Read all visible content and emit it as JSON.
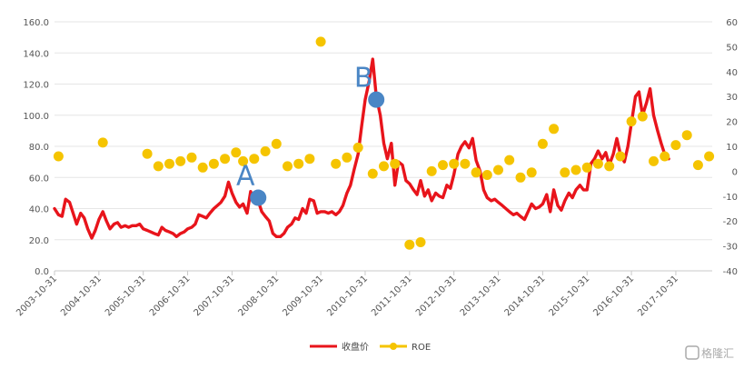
{
  "chart_data": {
    "type": "line",
    "title": "",
    "xlabel": "",
    "ylabel_left": "",
    "ylabel_right": "",
    "left_axis": {
      "min": 0,
      "max": 160,
      "step": 20,
      "ticks": [
        "0.0",
        "20.0",
        "40.0",
        "60.0",
        "80.0",
        "100.0",
        "120.0",
        "140.0",
        "160.0"
      ]
    },
    "right_axis": {
      "min": -40,
      "max": 60,
      "step": 10,
      "ticks": [
        "-40",
        "-30",
        "-20",
        "-10",
        "0",
        "10",
        "20",
        "30",
        "40",
        "50",
        "60"
      ]
    },
    "x_min": 2003.83,
    "x_max": 2018.65,
    "x_ticks": [
      {
        "t": 2003.83,
        "label": "2003-10-31"
      },
      {
        "t": 2004.83,
        "label": "2004-10-31"
      },
      {
        "t": 2005.83,
        "label": "2005-10-31"
      },
      {
        "t": 2006.83,
        "label": "2006-10-31"
      },
      {
        "t": 2007.83,
        "label": "2007-10-31"
      },
      {
        "t": 2008.83,
        "label": "2008-10-31"
      },
      {
        "t": 2009.83,
        "label": "2009-10-31"
      },
      {
        "t": 2010.83,
        "label": "2010-10-31"
      },
      {
        "t": 2011.83,
        "label": "2011-10-31"
      },
      {
        "t": 2012.83,
        "label": "2012-10-31"
      },
      {
        "t": 2013.83,
        "label": "2013-10-31"
      },
      {
        "t": 2014.83,
        "label": "2014-10-31"
      },
      {
        "t": 2015.83,
        "label": "2015-10-31"
      },
      {
        "t": 2016.83,
        "label": "2016-10-31"
      },
      {
        "t": 2017.83,
        "label": "2017-10-31"
      }
    ],
    "series": [
      {
        "name": "收盘价",
        "axis": "left",
        "color": "#e8141b",
        "type": "line",
        "points": [
          [
            2003.83,
            40
          ],
          [
            2003.92,
            36
          ],
          [
            2004.0,
            35
          ],
          [
            2004.08,
            46
          ],
          [
            2004.17,
            44
          ],
          [
            2004.25,
            37
          ],
          [
            2004.33,
            30
          ],
          [
            2004.42,
            37
          ],
          [
            2004.5,
            34
          ],
          [
            2004.58,
            27
          ],
          [
            2004.67,
            21
          ],
          [
            2004.75,
            26
          ],
          [
            2004.83,
            33
          ],
          [
            2004.92,
            38
          ],
          [
            2005.0,
            32
          ],
          [
            2005.08,
            27
          ],
          [
            2005.17,
            30
          ],
          [
            2005.25,
            31
          ],
          [
            2005.33,
            28
          ],
          [
            2005.42,
            29
          ],
          [
            2005.5,
            28
          ],
          [
            2005.58,
            29
          ],
          [
            2005.67,
            29
          ],
          [
            2005.75,
            30
          ],
          [
            2005.83,
            27
          ],
          [
            2005.92,
            26
          ],
          [
            2006.0,
            25
          ],
          [
            2006.08,
            24
          ],
          [
            2006.17,
            23
          ],
          [
            2006.25,
            28
          ],
          [
            2006.33,
            26
          ],
          [
            2006.42,
            25
          ],
          [
            2006.5,
            24
          ],
          [
            2006.58,
            22
          ],
          [
            2006.67,
            24
          ],
          [
            2006.75,
            25
          ],
          [
            2006.83,
            27
          ],
          [
            2006.92,
            28
          ],
          [
            2007.0,
            30
          ],
          [
            2007.08,
            36
          ],
          [
            2007.17,
            35
          ],
          [
            2007.25,
            34
          ],
          [
            2007.33,
            37
          ],
          [
            2007.42,
            40
          ],
          [
            2007.5,
            42
          ],
          [
            2007.58,
            44
          ],
          [
            2007.67,
            48
          ],
          [
            2007.75,
            57
          ],
          [
            2007.83,
            50
          ],
          [
            2007.92,
            44
          ],
          [
            2008.0,
            41
          ],
          [
            2008.08,
            43
          ],
          [
            2008.17,
            37
          ],
          [
            2008.25,
            51
          ],
          [
            2008.33,
            44
          ],
          [
            2008.42,
            45
          ],
          [
            2008.5,
            38
          ],
          [
            2008.58,
            35
          ],
          [
            2008.67,
            32
          ],
          [
            2008.75,
            24
          ],
          [
            2008.83,
            22
          ],
          [
            2008.92,
            22
          ],
          [
            2009.0,
            24
          ],
          [
            2009.08,
            28
          ],
          [
            2009.17,
            30
          ],
          [
            2009.25,
            34
          ],
          [
            2009.33,
            33
          ],
          [
            2009.42,
            40
          ],
          [
            2009.5,
            37
          ],
          [
            2009.58,
            46
          ],
          [
            2009.67,
            45
          ],
          [
            2009.75,
            37
          ],
          [
            2009.83,
            38
          ],
          [
            2009.92,
            38
          ],
          [
            2010.0,
            37
          ],
          [
            2010.08,
            38
          ],
          [
            2010.17,
            36
          ],
          [
            2010.25,
            38
          ],
          [
            2010.33,
            42
          ],
          [
            2010.42,
            50
          ],
          [
            2010.5,
            55
          ],
          [
            2010.58,
            65
          ],
          [
            2010.67,
            75
          ],
          [
            2010.75,
            93
          ],
          [
            2010.83,
            110
          ],
          [
            2010.92,
            122
          ],
          [
            2011.0,
            136
          ],
          [
            2011.08,
            112
          ],
          [
            2011.17,
            100
          ],
          [
            2011.25,
            82
          ],
          [
            2011.33,
            72
          ],
          [
            2011.42,
            82
          ],
          [
            2011.5,
            55
          ],
          [
            2011.58,
            70
          ],
          [
            2011.67,
            68
          ],
          [
            2011.75,
            58
          ],
          [
            2011.83,
            56
          ],
          [
            2011.92,
            52
          ],
          [
            2012.0,
            49
          ],
          [
            2012.08,
            58
          ],
          [
            2012.17,
            48
          ],
          [
            2012.25,
            52
          ],
          [
            2012.33,
            45
          ],
          [
            2012.42,
            50
          ],
          [
            2012.5,
            48
          ],
          [
            2012.58,
            47
          ],
          [
            2012.67,
            55
          ],
          [
            2012.75,
            53
          ],
          [
            2012.83,
            62
          ],
          [
            2012.92,
            75
          ],
          [
            2013.0,
            80
          ],
          [
            2013.08,
            83
          ],
          [
            2013.17,
            79
          ],
          [
            2013.25,
            85
          ],
          [
            2013.33,
            71
          ],
          [
            2013.42,
            64
          ],
          [
            2013.5,
            52
          ],
          [
            2013.58,
            47
          ],
          [
            2013.67,
            45
          ],
          [
            2013.75,
            46
          ],
          [
            2013.83,
            44
          ],
          [
            2013.92,
            42
          ],
          [
            2014.0,
            40
          ],
          [
            2014.08,
            38
          ],
          [
            2014.17,
            36
          ],
          [
            2014.25,
            37
          ],
          [
            2014.33,
            35
          ],
          [
            2014.42,
            33
          ],
          [
            2014.5,
            38
          ],
          [
            2014.58,
            43
          ],
          [
            2014.67,
            40
          ],
          [
            2014.75,
            41
          ],
          [
            2014.83,
            43
          ],
          [
            2014.92,
            49
          ],
          [
            2015.0,
            38
          ],
          [
            2015.08,
            52
          ],
          [
            2015.17,
            42
          ],
          [
            2015.25,
            39
          ],
          [
            2015.33,
            45
          ],
          [
            2015.42,
            50
          ],
          [
            2015.5,
            47
          ],
          [
            2015.58,
            52
          ],
          [
            2015.67,
            55
          ],
          [
            2015.75,
            52
          ],
          [
            2015.83,
            52
          ],
          [
            2015.92,
            69
          ],
          [
            2016.0,
            72
          ],
          [
            2016.08,
            77
          ],
          [
            2016.17,
            72
          ],
          [
            2016.25,
            76
          ],
          [
            2016.33,
            68
          ],
          [
            2016.42,
            75
          ],
          [
            2016.5,
            85
          ],
          [
            2016.58,
            75
          ],
          [
            2016.67,
            70
          ],
          [
            2016.75,
            80
          ],
          [
            2016.83,
            95
          ],
          [
            2016.92,
            112
          ],
          [
            2017.0,
            115
          ],
          [
            2017.08,
            100
          ],
          [
            2017.17,
            108
          ],
          [
            2017.25,
            117
          ],
          [
            2017.33,
            100
          ],
          [
            2017.42,
            90
          ],
          [
            2017.5,
            82
          ],
          [
            2017.58,
            75
          ],
          [
            2017.67,
            72
          ]
        ]
      },
      {
        "name": "ROE",
        "axis": "right",
        "color": "#f5c400",
        "type": "scatter",
        "points": [
          [
            2003.92,
            6
          ],
          [
            2004.92,
            11.5
          ],
          [
            2005.92,
            7
          ],
          [
            2006.17,
            2
          ],
          [
            2006.42,
            3
          ],
          [
            2006.67,
            4
          ],
          [
            2006.92,
            5.5
          ],
          [
            2007.17,
            1.5
          ],
          [
            2007.42,
            3
          ],
          [
            2007.67,
            5
          ],
          [
            2007.92,
            7.5
          ],
          [
            2008.08,
            4
          ],
          [
            2008.33,
            5
          ],
          [
            2008.58,
            8
          ],
          [
            2008.83,
            11
          ],
          [
            2009.08,
            2
          ],
          [
            2009.33,
            3
          ],
          [
            2009.58,
            5
          ],
          [
            2009.83,
            52
          ],
          [
            2010.17,
            3
          ],
          [
            2010.42,
            5.5
          ],
          [
            2010.67,
            9.5
          ],
          [
            2011.0,
            -1
          ],
          [
            2011.25,
            2
          ],
          [
            2011.5,
            3
          ],
          [
            2011.83,
            -29.5
          ],
          [
            2012.08,
            -28.5
          ],
          [
            2012.33,
            0
          ],
          [
            2012.58,
            2.5
          ],
          [
            2012.83,
            3
          ],
          [
            2013.08,
            3
          ],
          [
            2013.33,
            -0.5
          ],
          [
            2013.58,
            -1.5
          ],
          [
            2013.83,
            0.5
          ],
          [
            2014.08,
            4.5
          ],
          [
            2014.33,
            -2.5
          ],
          [
            2014.58,
            -0.5
          ],
          [
            2014.83,
            11
          ],
          [
            2015.08,
            17
          ],
          [
            2015.33,
            -0.5
          ],
          [
            2015.58,
            0.5
          ],
          [
            2015.83,
            1.5
          ],
          [
            2016.08,
            3
          ],
          [
            2016.33,
            2
          ],
          [
            2016.58,
            6
          ],
          [
            2016.83,
            20
          ],
          [
            2017.08,
            22
          ],
          [
            2017.33,
            4
          ],
          [
            2017.58,
            6
          ],
          [
            2017.83,
            10.5
          ],
          [
            2018.08,
            14.5
          ],
          [
            2018.33,
            2.5
          ],
          [
            2018.58,
            6
          ]
        ]
      }
    ],
    "annotations": [
      {
        "label": "A",
        "t": 2008.42,
        "value": 47,
        "color": "#4a86c5"
      },
      {
        "label": "B",
        "t": 2011.08,
        "value": 110,
        "color": "#4a86c5"
      }
    ],
    "legend": {
      "position": "bottom",
      "entries": [
        {
          "label": "收盘价",
          "color": "#e8141b"
        },
        {
          "label": "ROE",
          "color": "#f5c400"
        }
      ]
    }
  },
  "watermark": {
    "text": "格隆汇"
  }
}
